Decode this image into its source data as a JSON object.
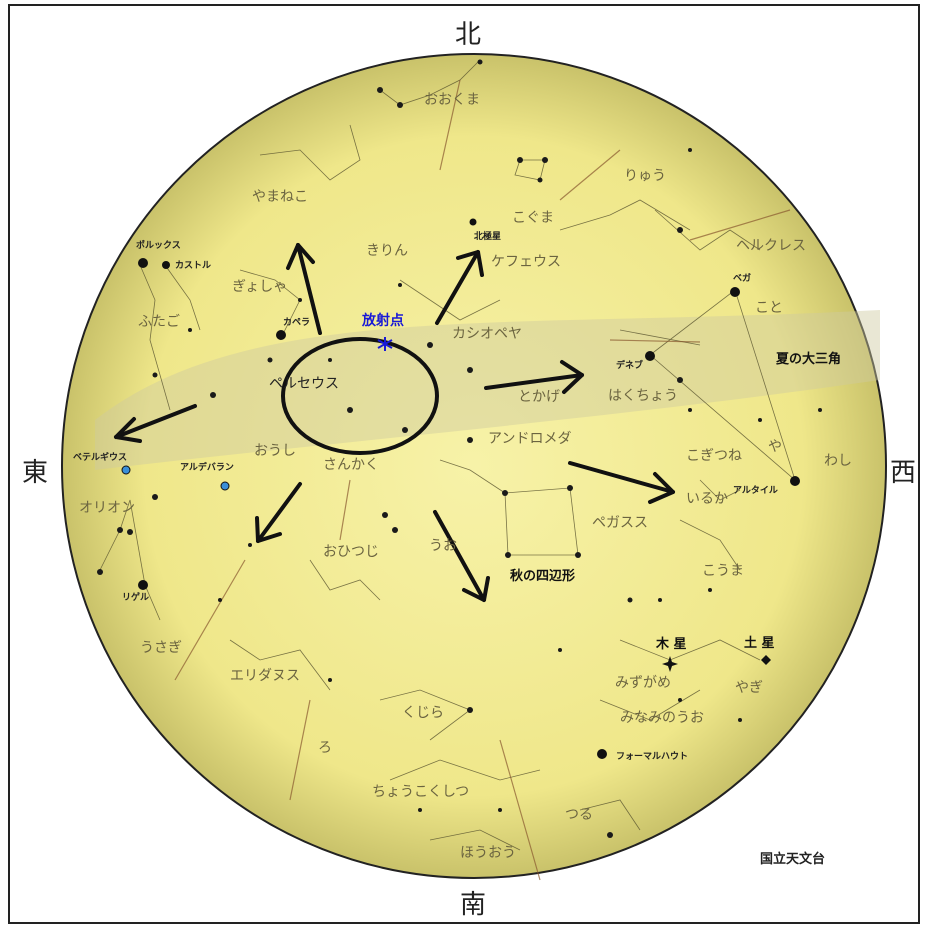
{
  "directions": {
    "north": "北",
    "south": "南",
    "east": "東",
    "west": "西"
  },
  "credit": "国立天文台",
  "radiant_label": "放射点",
  "constellations": {
    "ookuma": "おおくま",
    "ryu": "りゅう",
    "yamaneko": "やまねこ",
    "kogume": "こぐま",
    "kirin": "きりん",
    "cepheus": "ケフェウス",
    "hercules": "ヘルクレス",
    "gyosha": "ぎょしゃ",
    "futago": "ふたご",
    "cassiopeia": "カシオペヤ",
    "koto": "こと",
    "perseus": "ペルセウス",
    "tokage": "とかげ",
    "hakucho": "はくちょう",
    "andromeda": "アンドロメダ",
    "oushi": "おうし",
    "sankaku": "さんかく",
    "kogitsune": "こぎつね",
    "ya": "や",
    "washi": "わし",
    "orion": "オリオン",
    "iruka": "いるか",
    "pegasus": "ペガスス",
    "ohitsuji": "おひつじ",
    "uo": "うお",
    "kouma": "こうま",
    "usagi": "うさぎ",
    "eridanus": "エリダヌス",
    "mizugame": "みずがめ",
    "yagi": "やぎ",
    "kujira": "くじら",
    "minaminouo": "みなみのうお",
    "ro": "ろ",
    "choukokushitsu": "ちょうこくしつ",
    "tsuru": "つる",
    "houou": "ほうおう"
  },
  "stars": {
    "pollux": "ポルックス",
    "castor": "カストル",
    "capella": "カペラ",
    "polaris": "北極星",
    "vega": "ベガ",
    "deneb": "デネブ",
    "betelgeuse": "ベテルギウス",
    "aldebaran": "アルデバラン",
    "altair": "アルタイル",
    "rigel": "リゲル",
    "fomalhaut": "フォーマルハウト"
  },
  "planets": {
    "jupiter": "木 星",
    "saturn": "土 星"
  },
  "asterisms": {
    "summer_triangle": "夏の大三角",
    "autumn_square": "秋の四辺形"
  },
  "colors": {
    "sky": "#f2eb8c",
    "sky_edge": "#c8c260",
    "label": "#6b6440",
    "arrow": "#111111",
    "radiant": "#1a1ad6",
    "star_blue": "#3a8fd8"
  }
}
